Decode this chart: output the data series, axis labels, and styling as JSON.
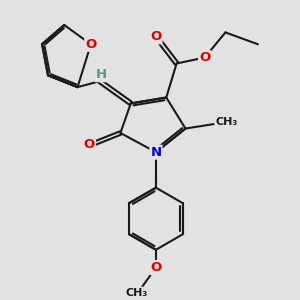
{
  "bg_color": "#e2e2e2",
  "bond_color": "#1a1a1a",
  "bond_width": 1.5,
  "atom_colors": {
    "O": "#e00000",
    "N": "#0000dd",
    "H": "#4a9a8a",
    "C": "#1a1a1a"
  },
  "font_size_atom": 9.5,
  "font_size_small": 8.5
}
